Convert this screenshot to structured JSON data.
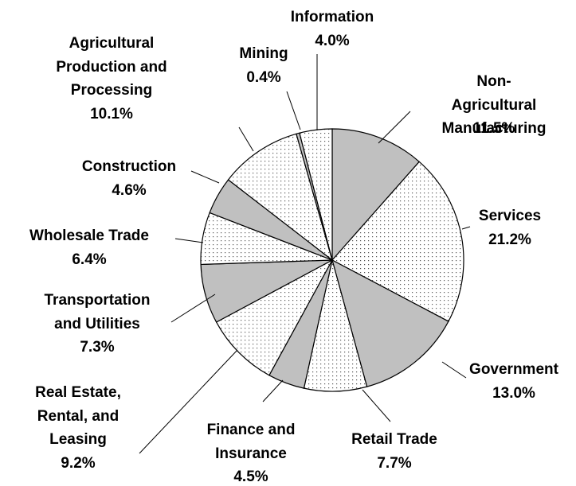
{
  "chart_data": {
    "type": "pie",
    "categories": [
      "Non-Agricultural\nManufacturing",
      "Services",
      "Government",
      "Retail Trade",
      "Finance and\nInsurance",
      "Real Estate,\nRental, and\nLeasing",
      "Transportation\nand Utilities",
      "Wholesale Trade",
      "Construction",
      "Agricultural\nProduction and\nProcessing",
      "Mining",
      "Information"
    ],
    "values": [
      11.5,
      21.2,
      13.0,
      7.7,
      4.5,
      9.2,
      7.3,
      6.4,
      4.6,
      10.1,
      0.4,
      4.0
    ],
    "value_labels": [
      "11.5%",
      "21.2%",
      "13.0%",
      "7.7%",
      "4.5%",
      "9.2%",
      "7.3%",
      "6.4%",
      "4.6%",
      "10.1%",
      "0.4%",
      "4.0%"
    ],
    "colors": [
      "#c0c0c0",
      "dotted",
      "#c0c0c0",
      "dotted",
      "#c0c0c0",
      "dotted",
      "#c0c0c0",
      "dotted",
      "#c0c0c0",
      "dotted",
      "#c0c0c0",
      "dotted"
    ]
  }
}
